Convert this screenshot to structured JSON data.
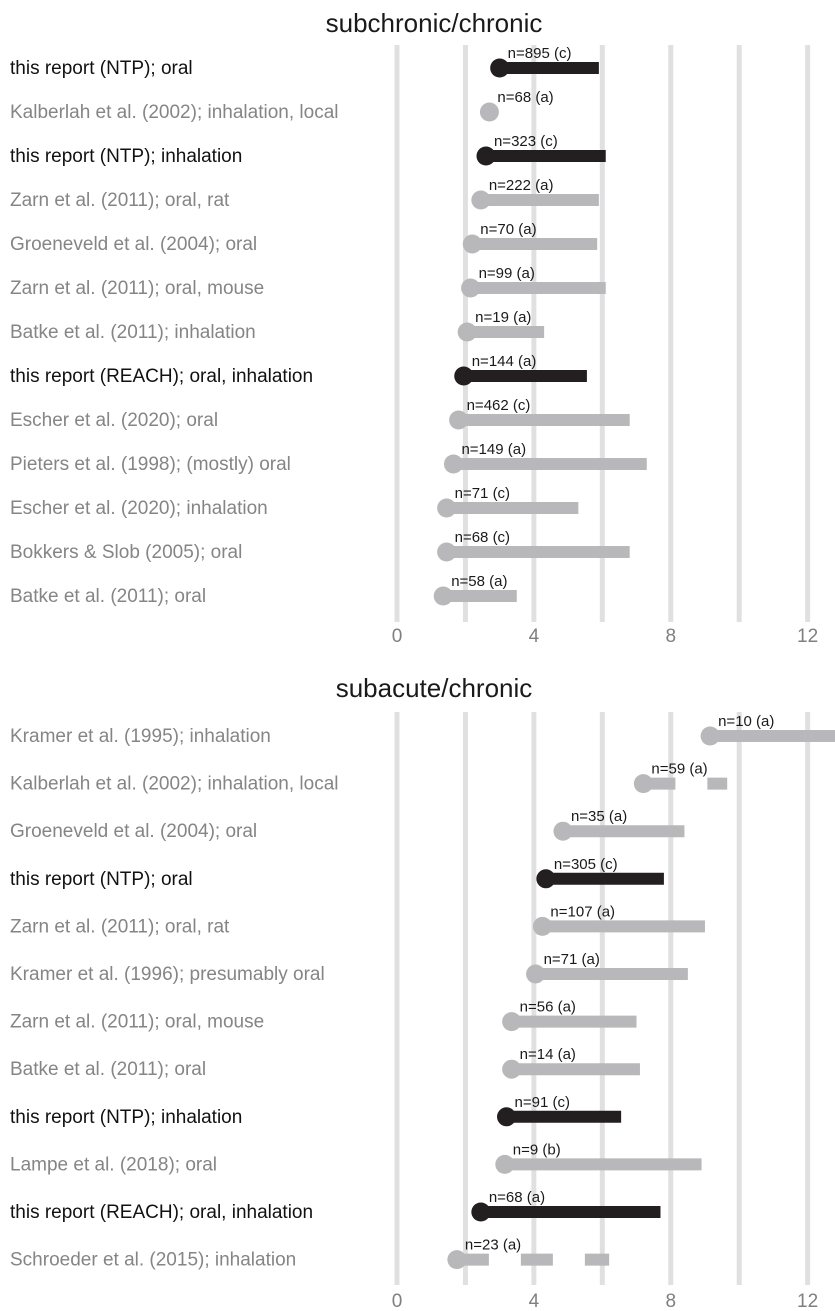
{
  "chart_data": [
    {
      "type": "lollipop",
      "title": "subchronic/chronic",
      "categories": [
        "this report (NTP); oral",
        "Kalberlah et al. (2002); inhalation, local",
        "this report (NTP); inhalation",
        "Zarn et al. (2011); oral, rat",
        "Groeneveld et al. (2004); oral",
        "Zarn et al. (2011); oral, mouse",
        "Batke et al. (2011); inhalation",
        "this report (REACH); oral, inhalation",
        "Escher et al. (2020); oral",
        "Pieters et al. (1998); (mostly) oral",
        "Escher et al. (2020); inhalation",
        "Bokkers & Slob (2005); oral",
        "Batke et al. (2011); oral"
      ],
      "values": [
        3.0,
        2.7,
        2.6,
        2.45,
        2.2,
        2.15,
        2.05,
        1.95,
        1.8,
        1.65,
        1.45,
        1.45,
        1.35
      ],
      "upper": [
        5.9,
        null,
        6.1,
        5.9,
        5.85,
        6.1,
        4.3,
        5.55,
        6.8,
        7.3,
        5.3,
        6.8,
        3.5
      ],
      "annotations": [
        "n=895 (c)",
        "n=68 (a)",
        "n=323 (c)",
        "n=222 (a)",
        "n=70 (a)",
        "n=99 (a)",
        "n=19 (a)",
        "n=144 (a)",
        "n=462 (c)",
        "n=149 (a)",
        "n=71 (c)",
        "n=68 (c)",
        "n=58 (a)"
      ],
      "colors": [
        "#231f20",
        "#b8b8ba",
        "#231f20",
        "#b8b8ba",
        "#b8b8ba",
        "#b8b8ba",
        "#b8b8ba",
        "#231f20",
        "#b8b8ba",
        "#b8b8ba",
        "#b8b8ba",
        "#b8b8ba",
        "#b8b8ba"
      ],
      "dashed": [
        false,
        false,
        false,
        false,
        false,
        false,
        false,
        false,
        false,
        false,
        false,
        false,
        false
      ],
      "xlim": [
        0,
        12.8
      ],
      "xticks": [
        0,
        4,
        8,
        12
      ],
      "minor_xticks": [
        2,
        6,
        10
      ],
      "grid": true
    },
    {
      "type": "lollipop",
      "title": "subacute/chronic",
      "categories": [
        "Kramer et al. (1995); inhalation",
        "Kalberlah et al. (2002); inhalation, local",
        "Groeneveld et al. (2004); oral",
        "this report (NTP); oral",
        "Zarn et al. (2011); oral, rat",
        "Kramer et al. (1996); presumably oral",
        "Zarn et al. (2011); oral, mouse",
        "Batke et al. (2011); oral",
        "this report (NTP); inhalation",
        "Lampe et al. (2018); oral",
        "this report (REACH); oral, inhalation",
        "Schroeder et al. (2015); inhalation"
      ],
      "values": [
        9.15,
        7.2,
        4.85,
        4.35,
        4.25,
        4.05,
        3.35,
        3.35,
        3.2,
        3.15,
        2.45,
        1.75
      ],
      "upper": [
        12.8,
        9.65,
        8.4,
        7.8,
        9.0,
        8.5,
        7.0,
        7.1,
        6.55,
        8.9,
        7.7,
        6.2
      ],
      "annotations": [
        "n=10 (a)",
        "n=59 (a)",
        "n=35 (a)",
        "n=305 (c)",
        "n=107 (a)",
        "n=71 (a)",
        "n=56 (a)",
        "n=14 (a)",
        "n=91 (c)",
        "n=9 (b)",
        "n=68 (a)",
        "n=23 (a)"
      ],
      "colors": [
        "#b8b8ba",
        "#b8b8ba",
        "#b8b8ba",
        "#231f20",
        "#b8b8ba",
        "#b8b8ba",
        "#b8b8ba",
        "#b8b8ba",
        "#231f20",
        "#b8b8ba",
        "#231f20",
        "#b8b8ba"
      ],
      "dashed": [
        false,
        true,
        false,
        false,
        false,
        false,
        false,
        false,
        false,
        false,
        false,
        true
      ],
      "xlim": [
        0,
        12.8
      ],
      "xticks": [
        0,
        4,
        8,
        12
      ],
      "minor_xticks": [
        2,
        6,
        10
      ],
      "grid": true
    }
  ]
}
